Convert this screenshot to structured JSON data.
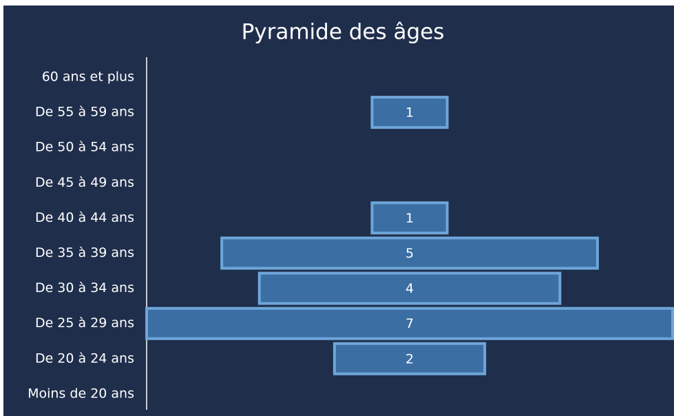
{
  "chart_data": {
    "type": "pyramid",
    "title": "Pyramide des âges",
    "categories": [
      "60 ans et plus",
      "De 55 à 59 ans",
      "De 50 à 54 ans",
      "De 45 à 49 ans",
      "De 40 à 44 ans",
      "De 35 à 39 ans",
      "De 30 à 34 ans",
      "De 25 à 29 ans",
      "De 20 à 24 ans",
      "Moins de 20 ans"
    ],
    "values": [
      null,
      1,
      null,
      null,
      1,
      5,
      4,
      7,
      2,
      null
    ],
    "color": "#3b6ea3",
    "border_color": "#6ea6da"
  }
}
